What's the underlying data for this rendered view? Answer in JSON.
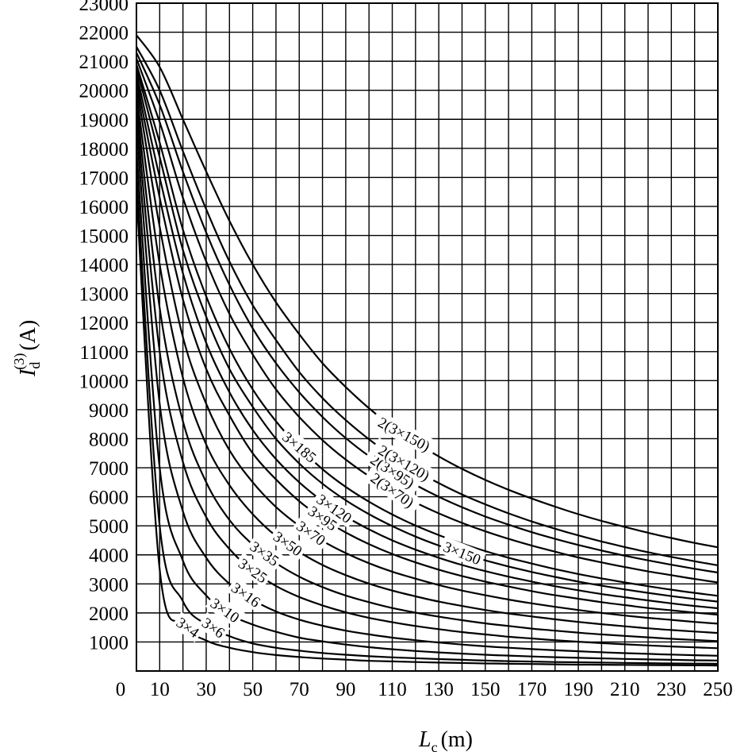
{
  "chart_data": {
    "type": "line",
    "title": "",
    "xlabel": "L_c (m)",
    "xlabel_parts": {
      "main": "L",
      "sub": "c",
      "unit": "(m)"
    },
    "ylabel": "I_d^(3) (A)",
    "ylabel_parts": {
      "main": "I",
      "sub": "d",
      "sup": "(3)",
      "unit": "(A)"
    },
    "xlim": [
      0,
      250
    ],
    "ylim": [
      0,
      23000
    ],
    "grid": true,
    "x_ticks": [
      0,
      10,
      30,
      50,
      70,
      90,
      110,
      130,
      150,
      170,
      190,
      210,
      230,
      250
    ],
    "x_tick_labels": [
      "0",
      "10",
      "30",
      "50",
      "70",
      "90",
      "110",
      "130",
      "150",
      "170",
      "190",
      "210",
      "230",
      "250"
    ],
    "y_ticks": [
      1000,
      2000,
      3000,
      4000,
      5000,
      6000,
      7000,
      8000,
      9000,
      10000,
      11000,
      12000,
      13000,
      14000,
      15000,
      16000,
      17000,
      18000,
      19000,
      20000,
      21000,
      22000,
      23000
    ],
    "y_tick_labels": [
      "1000",
      "2000",
      "3000",
      "4000",
      "5000",
      "6000",
      "7000",
      "8000",
      "9000",
      "10000",
      "11000",
      "12000",
      "13000",
      "14000",
      "15000",
      "16000",
      "17000",
      "18000",
      "19000",
      "20000",
      "21000",
      "22000",
      "23000"
    ],
    "x": [
      0,
      10,
      20,
      30,
      40,
      50,
      60,
      70,
      80,
      90,
      100,
      110,
      120,
      130,
      140,
      150,
      160,
      170,
      180,
      190,
      200,
      210,
      220,
      230,
      240,
      250
    ],
    "series": [
      {
        "name": "3×4",
        "label_at": 22,
        "label_angle": 35,
        "values": [
          16500,
          3500,
          1600,
          1050,
          800,
          650,
          550,
          480,
          430,
          390,
          350,
          330,
          310,
          290,
          275,
          260,
          250,
          240,
          230,
          220,
          215,
          210,
          205,
          200,
          195,
          190
        ]
      },
      {
        "name": "3×6",
        "label_at": 33,
        "label_angle": 35,
        "values": [
          17200,
          5000,
          2400,
          1600,
          1200,
          950,
          800,
          700,
          620,
          560,
          510,
          470,
          440,
          410,
          385,
          360,
          340,
          325,
          310,
          300,
          290,
          280,
          270,
          260,
          255,
          250
        ]
      },
      {
        "name": "3×10",
        "label_at": 38,
        "label_angle": 35,
        "values": [
          18000,
          7000,
          3800,
          2600,
          1950,
          1600,
          1350,
          1150,
          1020,
          910,
          820,
          750,
          690,
          640,
          600,
          560,
          530,
          500,
          475,
          455,
          435,
          415,
          400,
          385,
          370,
          360
        ]
      },
      {
        "name": "3×16",
        "label_at": 47,
        "label_angle": 35,
        "values": [
          18700,
          9200,
          5500,
          3900,
          3000,
          2450,
          2050,
          1770,
          1560,
          1390,
          1260,
          1150,
          1060,
          980,
          910,
          850,
          800,
          755,
          715,
          680,
          645,
          615,
          590,
          565,
          545,
          525
        ]
      },
      {
        "name": "3×25",
        "label_at": 50,
        "label_angle": 35,
        "values": [
          19200,
          11000,
          7200,
          5300,
          4200,
          3450,
          2930,
          2550,
          2260,
          2020,
          1830,
          1680,
          1550,
          1440,
          1340,
          1260,
          1180,
          1120,
          1060,
          1010,
          960,
          920,
          880,
          845,
          815,
          785
        ]
      },
      {
        "name": "3×35",
        "label_at": 55,
        "label_angle": 35,
        "values": [
          19600,
          12500,
          8600,
          6500,
          5200,
          4350,
          3720,
          3250,
          2890,
          2600,
          2370,
          2170,
          2010,
          1870,
          1750,
          1640,
          1550,
          1460,
          1390,
          1320,
          1260,
          1210,
          1160,
          1110,
          1070,
          1030
        ]
      },
      {
        "name": "3×50",
        "label_at": 65,
        "label_angle": 35,
        "values": [
          19900,
          14000,
          10100,
          7800,
          6400,
          5400,
          4650,
          4100,
          3650,
          3300,
          3010,
          2770,
          2570,
          2390,
          2240,
          2100,
          1980,
          1880,
          1780,
          1690,
          1610,
          1540,
          1470,
          1410,
          1360,
          1310
        ]
      },
      {
        "name": "3×70",
        "label_at": 75,
        "label_angle": 35,
        "values": [
          20200,
          15300,
          11500,
          9200,
          7600,
          6500,
          5650,
          5000,
          4480,
          4060,
          3710,
          3420,
          3180,
          2960,
          2770,
          2610,
          2460,
          2330,
          2210,
          2100,
          2000,
          1910,
          1830,
          1760,
          1690,
          1630
        ]
      },
      {
        "name": "3×95",
        "label_at": 80,
        "label_angle": 35,
        "values": [
          20400,
          16300,
          12800,
          10400,
          8800,
          7500,
          6600,
          5850,
          5250,
          4770,
          4370,
          4030,
          3740,
          3490,
          3270,
          3080,
          2910,
          2750,
          2610,
          2490,
          2370,
          2270,
          2170,
          2090,
          2010,
          1940
        ]
      },
      {
        "name": "3×120",
        "label_at": 85,
        "label_angle": 35,
        "values": [
          20600,
          17000,
          13700,
          11300,
          9600,
          8300,
          7300,
          6500,
          5850,
          5320,
          4880,
          4500,
          4180,
          3900,
          3650,
          3440,
          3250,
          3080,
          2920,
          2780,
          2650,
          2540,
          2430,
          2330,
          2240,
          2160
        ]
      },
      {
        "name": "3×150",
        "label_at": 140,
        "label_angle": 22,
        "values": [
          20800,
          17700,
          14500,
          12200,
          10400,
          9100,
          8000,
          7150,
          6450,
          5880,
          5400,
          4990,
          4630,
          4320,
          4050,
          3810,
          3600,
          3410,
          3240,
          3080,
          2940,
          2810,
          2690,
          2580,
          2480,
          2390
        ]
      },
      {
        "name": "3×185",
        "label_at": 70,
        "label_angle": 40,
        "values": [
          20900,
          18200,
          15200,
          12900,
          11100,
          9700,
          8600,
          7700,
          6950,
          6340,
          5830,
          5390,
          5010,
          4680,
          4390,
          4130,
          3900,
          3700,
          3510,
          3340,
          3190,
          3050,
          2920,
          2800,
          2690,
          2590
        ]
      },
      {
        "name": "2(3×70)",
        "label_at": 110,
        "label_angle": 35,
        "values": [
          21100,
          18900,
          16300,
          14100,
          12300,
          10900,
          9700,
          8750,
          7950,
          7280,
          6710,
          6220,
          5800,
          5430,
          5100,
          4810,
          4550,
          4320,
          4110,
          3910,
          3740,
          3580,
          3430,
          3300,
          3170,
          3050
        ]
      },
      {
        "name": "2(3×95)",
        "label_at": 110,
        "label_angle": 33,
        "values": [
          21300,
          19500,
          17200,
          15100,
          13300,
          11800,
          10600,
          9600,
          8750,
          8020,
          7400,
          6870,
          6410,
          6000,
          5640,
          5320,
          5040,
          4780,
          4550,
          4340,
          4150,
          3970,
          3810,
          3660,
          3520,
          3390
        ]
      },
      {
        "name": "2(3×120)",
        "label_at": 115,
        "label_angle": 30,
        "values": [
          21500,
          20000,
          17900,
          15900,
          14100,
          12600,
          11400,
          10300,
          9400,
          8640,
          7980,
          7410,
          6910,
          6470,
          6080,
          5740,
          5430,
          5150,
          4900,
          4670,
          4460,
          4270,
          4090,
          3930,
          3780,
          3640
        ]
      },
      {
        "name": "2(3×150)",
        "label_at": 115,
        "label_angle": 28,
        "values": [
          21900,
          20800,
          19000,
          17200,
          15500,
          14000,
          12700,
          11600,
          10600,
          9780,
          9050,
          8420,
          7870,
          7390,
          6960,
          6580,
          6240,
          5940,
          5660,
          5400,
          5170,
          4960,
          4760,
          4580,
          4410,
          4260
        ]
      }
    ]
  }
}
